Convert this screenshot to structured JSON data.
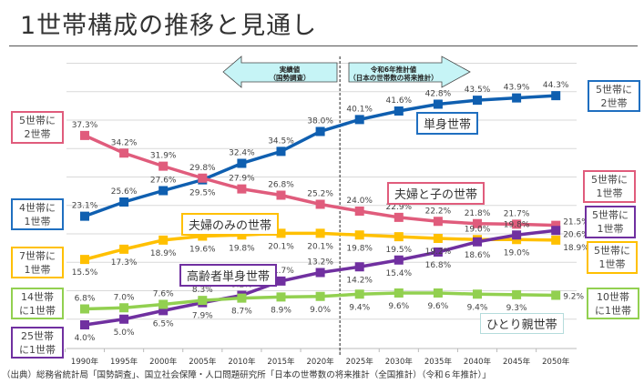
{
  "title": "1世帯構成の推移と見通し",
  "source": "（出典）総務省統計局「国勢調査」、国立社会保障・人口問題研究所「日本の世帯数の将来推計（全国推計）（令和６年推計）」",
  "arrows": {
    "actual_line1": "実績値",
    "actual_line2": "（国勢調査）",
    "forecast_line1": "令和6年推計値",
    "forecast_line2": "（日本の世帯数の将来推計）"
  },
  "left_boxes": [
    {
      "text": "5世帯に\n2世帯",
      "color": "#e05c7c"
    },
    {
      "text": "4世帯に\n1世帯",
      "color": "#1f6fc0"
    },
    {
      "text": "7世帯に\n1世帯",
      "color": "#ffc000"
    },
    {
      "text": "14世帯\nに1世帯",
      "color": "#92d050"
    },
    {
      "text": "25世帯\nに1世帯",
      "color": "#7030a0"
    }
  ],
  "right_boxes": [
    {
      "text": "5世帯に\n2世帯",
      "color": "#1f6fc0"
    },
    {
      "text": "5世帯に\n1世帯",
      "color": "#e05c7c"
    },
    {
      "text": "5世帯に\n1世帯",
      "color": "#7030a0"
    },
    {
      "text": "5世帯に\n1世帯",
      "color": "#ffc000"
    },
    {
      "text": "10世帯\nに1世帯",
      "color": "#92d050"
    }
  ],
  "chart_data": {
    "type": "line",
    "categories": [
      "1990年",
      "1995年",
      "2000年",
      "2005年",
      "2010年",
      "2015年",
      "2020年",
      "2025年",
      "2030年",
      "2035年",
      "2040年",
      "2045年",
      "2050年"
    ],
    "ylim": [
      0,
      50
    ],
    "grid": true,
    "unit": "%",
    "divider_between": [
      "2020年",
      "2025年"
    ],
    "series": [
      {
        "name": "単身世帯",
        "color": "#0f5fb0",
        "values": [
          23.1,
          25.6,
          27.6,
          29.5,
          32.4,
          34.5,
          38.0,
          40.1,
          41.6,
          42.8,
          43.5,
          43.9,
          44.3
        ]
      },
      {
        "name": "夫婦と子の世帯",
        "color": "#e05c7c",
        "values": [
          37.3,
          34.2,
          31.9,
          29.8,
          27.9,
          26.8,
          25.2,
          24.0,
          22.9,
          22.2,
          21.8,
          21.7,
          21.5
        ]
      },
      {
        "name": "夫婦のみの世帯",
        "color": "#ffc000",
        "values": [
          15.5,
          17.3,
          18.9,
          19.6,
          19.8,
          20.1,
          20.1,
          19.8,
          19.5,
          19.2,
          19.0,
          19.0,
          18.9
        ]
      },
      {
        "name": "高齢者単身世帯",
        "color": "#7030a0",
        "values": [
          4.0,
          5.0,
          6.5,
          7.9,
          9.2,
          11.7,
          13.2,
          14.2,
          15.4,
          16.8,
          18.6,
          19.8,
          20.6
        ]
      },
      {
        "name": "ひとり親世帯",
        "color": "#92d050",
        "values": [
          6.8,
          7.0,
          7.6,
          8.3,
          8.7,
          8.9,
          9.0,
          9.4,
          9.6,
          9.6,
          9.4,
          9.3,
          9.2
        ]
      }
    ]
  }
}
